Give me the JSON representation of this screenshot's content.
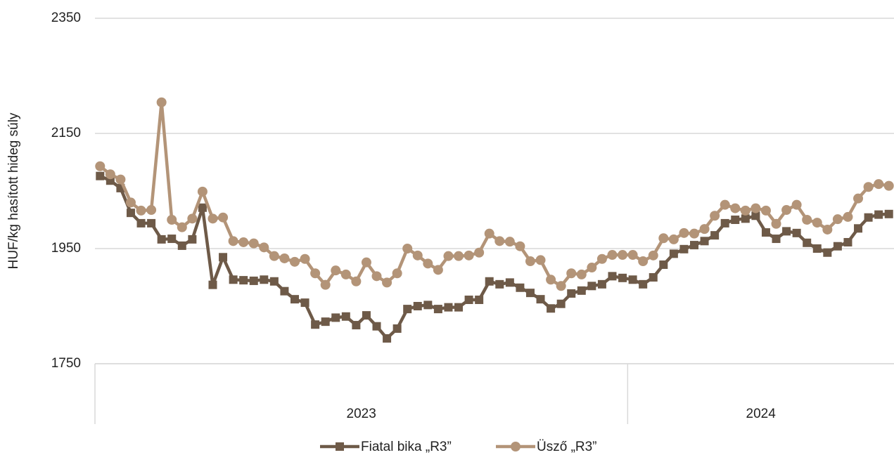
{
  "chart_data": {
    "type": "line",
    "y_label": "HUF/kg hasított hideg súly",
    "categories": [
      null,
      null,
      null,
      null,
      null,
      null,
      null,
      null,
      null,
      null,
      null,
      null,
      null,
      null,
      null,
      null,
      null,
      null,
      null,
      null,
      null,
      null,
      null,
      null,
      null,
      null,
      null,
      null,
      null,
      null,
      null,
      null,
      null,
      null,
      null,
      null,
      null,
      null,
      null,
      null,
      null,
      null,
      null,
      null,
      null,
      null,
      null,
      null,
      null,
      null,
      null,
      null,
      null,
      null,
      null,
      null,
      null,
      null,
      null,
      null,
      null,
      null,
      null,
      null,
      null,
      null,
      null,
      null,
      null,
      null,
      null,
      null,
      null,
      null,
      null,
      null,
      null,
      null
    ],
    "groups": [
      {
        "label": "2023",
        "size": 52
      },
      {
        "label": "2024",
        "size": 26
      }
    ],
    "series": [
      {
        "name": "Fiatal bika „R3”",
        "color": "#6e5a48",
        "marker": "square",
        "values": [
          2076,
          2068,
          2055,
          2012,
          1994,
          1994,
          1966,
          1967,
          1955,
          1966,
          2021,
          1887,
          1935,
          1896,
          1895,
          1894,
          1896,
          1893,
          1876,
          1862,
          1856,
          1818,
          1823,
          1830,
          1832,
          1817,
          1834,
          1815,
          1794,
          1811,
          1845,
          1850,
          1852,
          1845,
          1848,
          1848,
          1861,
          1861,
          1893,
          1888,
          1891,
          1882,
          1873,
          1862,
          1846,
          1854,
          1872,
          1877,
          1885,
          1888,
          1902,
          1899,
          1896,
          1888,
          1900,
          1922,
          1941,
          1949,
          1956,
          1963,
          1973,
          1994,
          2000,
          2002,
          2007,
          1978,
          1967,
          1980,
          1977,
          1960,
          1950,
          1943,
          1954,
          1961,
          1985,
          2004,
          2009,
          2010
        ]
      },
      {
        "name": "Üsző „R3”",
        "color": "#b39478",
        "marker": "circle",
        "values": [
          2093,
          2079,
          2070,
          2030,
          2016,
          2017,
          2204,
          2000,
          1987,
          2002,
          2049,
          2002,
          2004,
          1963,
          1961,
          1959,
          1952,
          1937,
          1933,
          1927,
          1932,
          1907,
          1887,
          1912,
          1905,
          1893,
          1926,
          1902,
          1891,
          1907,
          1950,
          1938,
          1924,
          1913,
          1937,
          1937,
          1938,
          1943,
          1976,
          1963,
          1962,
          1954,
          1928,
          1930,
          1896,
          1885,
          1907,
          1905,
          1917,
          1932,
          1939,
          1939,
          1939,
          1928,
          1938,
          1968,
          1966,
          1977,
          1976,
          1984,
          2007,
          2026,
          2020,
          2016,
          2020,
          2016,
          1993,
          2017,
          2026,
          2000,
          1995,
          1983,
          2001,
          2005,
          2037,
          2057,
          2062,
          2059
        ]
      }
    ],
    "ylim": [
      1750,
      2350
    ],
    "yticks": [
      1750,
      1950,
      2150,
      2350
    ],
    "grid": true,
    "legend": "bottom"
  }
}
